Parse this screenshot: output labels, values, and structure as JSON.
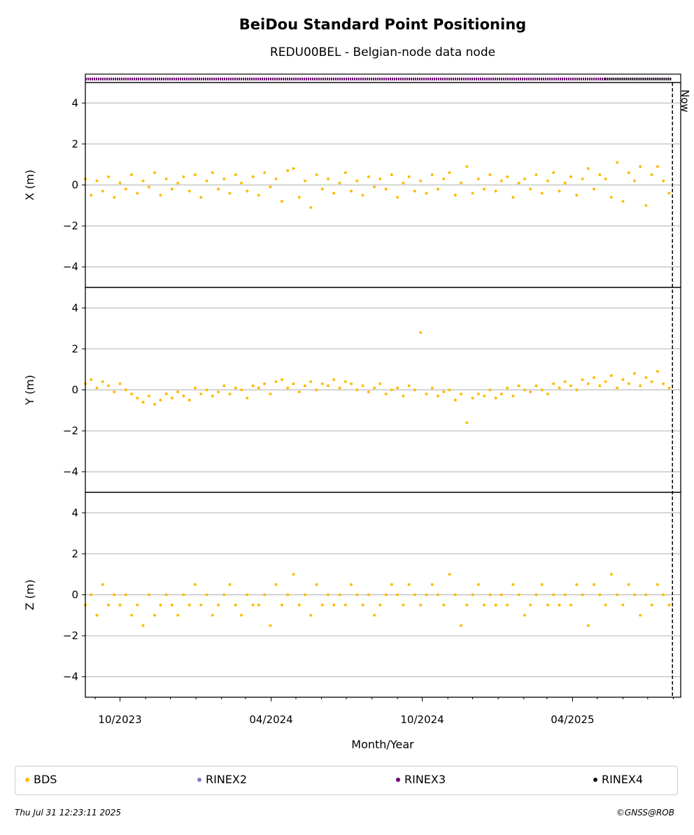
{
  "chart_data": {
    "type": "scatter",
    "title": "BeiDou Standard Point Positioning",
    "subtitle": "REDU00BEL - Belgian-node data node",
    "xlabel": "Month/Year",
    "x_range": [
      "2023-08-20",
      "2025-08-10"
    ],
    "x_tick_labels": [
      "10/2023",
      "04/2024",
      "10/2024",
      "04/2025"
    ],
    "now_marker": {
      "label": "Now",
      "date": "2025-07-31"
    },
    "panels": [
      {
        "ylabel": "X (m)",
        "ylim": [
          -5,
          5
        ],
        "yticks": [
          -4,
          -2,
          0,
          2,
          4
        ],
        "yticklabels": [
          "−4",
          "−2",
          "0",
          "2",
          "4"
        ],
        "grid": true
      },
      {
        "ylabel": "Y (m)",
        "ylim": [
          -5,
          5
        ],
        "yticks": [
          -4,
          -2,
          0,
          2,
          4
        ],
        "yticklabels": [
          "−4",
          "−2",
          "0",
          "2",
          "4"
        ],
        "grid": true
      },
      {
        "ylabel": "Z (m)",
        "ylim": [
          -5,
          5
        ],
        "yticks": [
          -4,
          -2,
          0,
          2,
          4
        ],
        "yticklabels": [
          "−4",
          "−2",
          "0",
          "2",
          "4"
        ],
        "grid": true
      }
    ],
    "rinex_strip": [
      {
        "name": "RINEX3",
        "start": "2023-08-20",
        "end": "2025-05-10"
      },
      {
        "name": "RINEX4",
        "start": "2025-05-10",
        "end": "2025-07-30"
      }
    ],
    "series": [
      {
        "name": "BDS",
        "x_start": "2023-08-20",
        "x_end": "2025-07-30",
        "x_days": [
          0,
          7,
          14,
          21,
          28,
          35,
          42,
          49,
          56,
          63,
          70,
          77,
          84,
          91,
          98,
          105,
          112,
          119,
          126,
          133,
          140,
          147,
          154,
          161,
          168,
          175,
          182,
          189,
          196,
          203,
          210,
          217,
          224,
          231,
          238,
          245,
          252,
          259,
          266,
          273,
          280,
          287,
          294,
          301,
          308,
          315,
          322,
          329,
          336,
          343,
          350,
          357,
          364,
          371,
          378,
          385,
          392,
          399,
          406,
          413,
          420,
          427,
          434,
          441,
          448,
          455,
          462,
          469,
          476,
          483,
          490,
          497,
          504,
          511,
          518,
          525,
          532,
          539,
          546,
          553,
          560,
          567,
          574,
          581,
          588,
          595,
          602,
          609,
          616,
          623,
          630,
          637,
          644,
          651,
          658,
          665,
          672,
          679,
          686,
          693,
          700,
          707
        ],
        "X": [
          0.3,
          -0.5,
          0.2,
          -0.3,
          0.4,
          -0.6,
          0.1,
          -0.2,
          0.5,
          -0.4,
          0.2,
          -0.1,
          0.6,
          -0.5,
          0.3,
          -0.2,
          0.1,
          0.4,
          -0.3,
          0.5,
          -0.6,
          0.2,
          0.6,
          -0.2,
          0.3,
          -0.4,
          0.5,
          0.1,
          -0.3,
          0.4,
          -0.5,
          0.6,
          -0.1,
          0.3,
          -0.8,
          0.7,
          0.8,
          -0.6,
          0.2,
          -1.1,
          0.5,
          -0.2,
          0.3,
          -0.4,
          0.1,
          0.6,
          -0.3,
          0.2,
          -0.5,
          0.4,
          -0.1,
          0.3,
          -0.2,
          0.5,
          -0.6,
          0.1,
          0.4,
          -0.3,
          0.2,
          -0.4,
          0.5,
          -0.2,
          0.3,
          0.6,
          -0.5,
          0.1,
          0.9,
          -0.4,
          0.3,
          -0.2,
          0.5,
          -0.3,
          0.2,
          0.4,
          -0.6,
          0.1,
          0.3,
          -0.2,
          0.5,
          -0.4,
          0.2,
          0.6,
          -0.3,
          0.1,
          0.4,
          -0.5,
          0.3,
          0.8,
          -0.2,
          0.5,
          0.3,
          -0.6,
          1.1,
          -0.8,
          0.6,
          0.2,
          0.9,
          -1.0,
          0.5,
          0.9,
          0.2,
          -0.4
        ],
        "Y": [
          0.3,
          0.5,
          0.1,
          0.4,
          0.2,
          -0.1,
          0.3,
          0.0,
          -0.2,
          -0.4,
          -0.6,
          -0.3,
          -0.7,
          -0.5,
          -0.2,
          -0.4,
          -0.1,
          -0.3,
          -0.5,
          0.1,
          -0.2,
          0.0,
          -0.3,
          -0.1,
          0.2,
          -0.2,
          0.1,
          0.0,
          -0.4,
          0.2,
          0.1,
          0.3,
          -0.2,
          0.4,
          0.5,
          0.1,
          0.3,
          -0.1,
          0.2,
          0.4,
          0.0,
          0.3,
          0.2,
          0.5,
          0.1,
          0.4,
          0.3,
          0.0,
          0.2,
          -0.1,
          0.1,
          0.3,
          -0.2,
          0.0,
          0.1,
          -0.3,
          0.2,
          0.0,
          2.8,
          -0.2,
          0.1,
          -0.3,
          -0.1,
          0.0,
          -0.5,
          -0.2,
          -1.6,
          -0.4,
          -0.2,
          -0.3,
          0.0,
          -0.4,
          -0.2,
          0.1,
          -0.3,
          0.2,
          0.0,
          -0.1,
          0.2,
          0.0,
          -0.2,
          0.3,
          0.1,
          0.4,
          0.2,
          0.0,
          0.5,
          0.3,
          0.6,
          0.2,
          0.4,
          0.7,
          0.1,
          0.5,
          0.3,
          0.8,
          0.2,
          0.6,
          0.4,
          0.9,
          0.3,
          0.1
        ],
        "Z": [
          -0.5,
          0.0,
          -1.0,
          0.5,
          -0.5,
          0.0,
          -0.5,
          0.0,
          -1.0,
          -0.5,
          -1.5,
          0.0,
          -1.0,
          -0.5,
          0.0,
          -0.5,
          -1.0,
          0.0,
          -0.5,
          0.5,
          -0.5,
          0.0,
          -1.0,
          -0.5,
          0.0,
          0.5,
          -0.5,
          -1.0,
          0.0,
          -0.5,
          -0.5,
          0.0,
          -1.5,
          0.5,
          -0.5,
          0.0,
          1.0,
          -0.5,
          0.0,
          -1.0,
          0.5,
          -0.5,
          0.0,
          -0.5,
          0.0,
          -0.5,
          0.5,
          0.0,
          -0.5,
          0.0,
          -1.0,
          -0.5,
          0.0,
          0.5,
          0.0,
          -0.5,
          0.5,
          0.0,
          -0.5,
          0.0,
          0.5,
          0.0,
          -0.5,
          1.0,
          0.0,
          -1.5,
          -0.5,
          0.0,
          0.5,
          -0.5,
          0.0,
          -0.5,
          0.0,
          -0.5,
          0.5,
          0.0,
          -1.0,
          -0.5,
          0.0,
          0.5,
          -0.5,
          0.0,
          -0.5,
          0.0,
          -0.5,
          0.5,
          0.0,
          -1.5,
          0.5,
          0.0,
          -0.5,
          1.0,
          0.0,
          -0.5,
          0.5,
          0.0,
          -1.0,
          0.0,
          -0.5,
          0.5,
          0.0,
          -0.5
        ]
      }
    ],
    "legend": [
      {
        "name": "BDS",
        "color": "#ffbb00"
      },
      {
        "name": "RINEX2",
        "color": "#8080c0"
      },
      {
        "name": "RINEX3",
        "color": "#6b0070"
      },
      {
        "name": "RINEX4",
        "color": "#1a0a1e"
      }
    ],
    "legend_position": "bottom"
  },
  "footer": {
    "timestamp": "Thu Jul 31 12:23:11 2025",
    "copyright": "©GNSS@ROB"
  }
}
